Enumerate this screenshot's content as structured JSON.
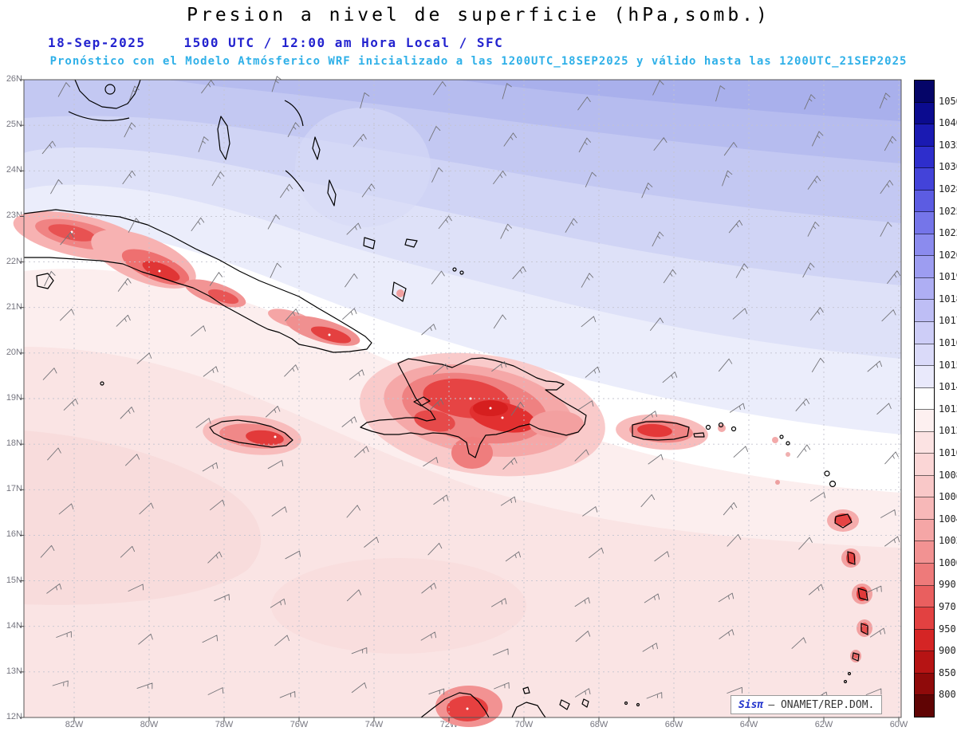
{
  "header": {
    "title": "Presion a nivel de superficie (hPa,somb.)",
    "date": "18-Sep-2025",
    "time": "1500 UTC / 12:00 am Hora Local / SFC",
    "forecast": "Pronóstico con el Modelo Atmósferico WRF inicializado a las 1200UTC_18SEP2025 y válido hasta las  1200UTC_21SEP2025"
  },
  "axes": {
    "lat_labels": [
      "26N",
      "25N",
      "24N",
      "23N",
      "22N",
      "21N",
      "20N",
      "19N",
      "18N",
      "17N",
      "16N",
      "15N",
      "14N",
      "13N",
      "12N"
    ],
    "lon_labels": [
      "82W",
      "80W",
      "78W",
      "76W",
      "74W",
      "72W",
      "70W",
      "68W",
      "66W",
      "64W",
      "62W",
      "60W"
    ]
  },
  "colorbar": {
    "unit": "hPa",
    "labels": [
      "1050",
      "1040",
      "1035",
      "1030",
      "1028",
      "1025",
      "1022",
      "1020",
      "1019",
      "1018",
      "1017",
      "1016",
      "1015",
      "1014",
      "1013",
      "1012",
      "1010",
      "1008",
      "1006",
      "1004",
      "1002",
      "1000",
      "990",
      "970",
      "950",
      "900",
      "850",
      "800"
    ],
    "colors": [
      "#050568",
      "#0b0b8f",
      "#1a1ab2",
      "#2e2ecc",
      "#4343d9",
      "#5c5ce2",
      "#7575e9",
      "#8b8bee",
      "#9d9df1",
      "#aeaef3",
      "#bebef5",
      "#cdcdf7",
      "#dadaf9",
      "#e9e9fb",
      "#ffffff",
      "#fdf0f0",
      "#fce3e3",
      "#fbd6d6",
      "#f9c8c8",
      "#f7b8b8",
      "#f5a6a6",
      "#f29292",
      "#ee7a7a",
      "#e95f5f",
      "#e24141",
      "#d52525",
      "#b61414",
      "#8f0a0a",
      "#600404"
    ]
  },
  "watermark": {
    "brand": "Sisπ",
    "org": "– ONAMET/REP.DOM."
  },
  "chart_data": {
    "type": "heatmap",
    "title": "Presion a nivel de superficie (hPa,somb.)",
    "units": "hPa",
    "model": "WRF",
    "init": "1200UTC_18SEP2025",
    "valid_until": "1200UTC_21SEP2025",
    "valid_time": "1500 UTC / 12:00 am Hora Local / SFC",
    "lat_range": [
      "12N",
      "26N"
    ],
    "lon_range": [
      "83W",
      "60W"
    ],
    "shading_levels_hPa": [
      800,
      850,
      900,
      950,
      970,
      990,
      1000,
      1002,
      1004,
      1006,
      1008,
      1010,
      1012,
      1013,
      1014,
      1015,
      1016,
      1017,
      1018,
      1019,
      1020,
      1022,
      1025,
      1028,
      1030,
      1035,
      1040,
      1050
    ],
    "regions": [
      {
        "area": "Atlantic north of ~22N (top of map, max toward NE corner)",
        "pressure_hPa": "1015-1020",
        "shading": "blue"
      },
      {
        "area": "Band across the Greater Antilles ~19N-22N",
        "pressure_hPa": "1013-1014",
        "shading": "white"
      },
      {
        "area": "Caribbean Sea south of ~19N",
        "pressure_hPa": "1010-1013",
        "shading": "pale pink"
      },
      {
        "area": "Terrain of Cuba, Jamaica, Hispaniola, Puerto Rico, Lesser Antilles, Guajira",
        "pressure_hPa": "990-1008",
        "shading": "red (terrain-reduced pressure)"
      }
    ],
    "overlays": [
      "surface wind barbs (gray)",
      "coastlines (black)",
      "dashed grid: 1° latitude / 2° longitude"
    ],
    "grid_on": true,
    "legend_position": "right colorbar"
  }
}
